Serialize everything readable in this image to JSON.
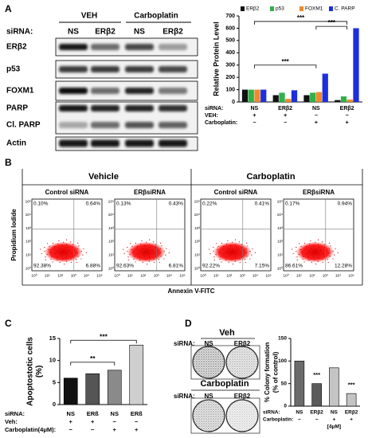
{
  "panels": [
    "A",
    "B",
    "C",
    "D"
  ],
  "blot": {
    "groups": [
      "VEH",
      "Carboplatin"
    ],
    "sirna_label": "siRNA:",
    "lanes": [
      "NS",
      "ERβ2",
      "NS",
      "ERβ2"
    ],
    "proteins": [
      "ERβ2",
      "p53",
      "FOXM1",
      "PARP",
      "Cl. PARP",
      "Actin"
    ]
  },
  "flow": {
    "groups": [
      "Vehicle",
      "Carboplatin"
    ],
    "y_label": "Propidium Iodide",
    "x_label": "Annexin V-FITC",
    "ticks": [
      "10⁰",
      "10¹",
      "10²",
      "10³",
      "10⁴",
      "10⁵"
    ],
    "plots": [
      {
        "title": "Control siRNA",
        "quadrants": [
          "0.10%",
          "0.64%",
          "92.38%",
          "6.88%"
        ]
      },
      {
        "title": "ERβsiRNA",
        "quadrants": [
          "0.13%",
          "0.43%",
          "92.63%",
          "6.81%"
        ]
      },
      {
        "title": "Control siRNA",
        "quadrants": [
          "0.22%",
          "0.41%",
          "92.22%",
          "7.15%"
        ]
      },
      {
        "title": "ERβsiRNA",
        "quadrants": [
          "0.17%",
          "0.94%",
          "86.61%",
          "12.28%"
        ]
      }
    ]
  },
  "colony": {
    "groups": [
      "Veh",
      "Carboplatin"
    ],
    "sirna_label": "siRNA:",
    "lanes": [
      "NS",
      "ERβ2"
    ]
  },
  "chart_data": [
    {
      "type": "bar",
      "ylabel": [
        "Relative Protein Level"
      ],
      "series": [
        {
          "name": "ERβ2",
          "color": "#111111",
          "values": [
            100,
            55,
            55,
            15
          ]
        },
        {
          "name": "p53",
          "color": "#2fb24a",
          "values": [
            100,
            75,
            75,
            45
          ]
        },
        {
          "name": "FOXM1",
          "color": "#f08a2c",
          "values": [
            100,
            25,
            80,
            20
          ]
        },
        {
          "name": "C. PARP",
          "color": "#1c2fe0",
          "values": [
            100,
            95,
            230,
            600
          ]
        }
      ],
      "ylim": [
        0,
        700
      ],
      "yticks": [
        0,
        100,
        200,
        300,
        400,
        500,
        600,
        700
      ],
      "annotations": [
        "***",
        "***",
        "***"
      ],
      "conditions": [
        {
          "label": "siRNA:",
          "values": [
            "NS",
            "ERβ2",
            "NS",
            "ERβ2"
          ]
        },
        {
          "label": "VEH:",
          "values": [
            "+",
            "+",
            "−",
            "−"
          ]
        },
        {
          "label": "Carboplatin:",
          "values": [
            "−",
            "−",
            "+",
            "+"
          ]
        }
      ]
    },
    {
      "type": "bar",
      "ylabel": [
        "Apoptostotic cells",
        "(%)"
      ],
      "values": [
        6,
        7,
        7.8,
        13.5
      ],
      "colors": [
        "#111111",
        "#555555",
        "#8a8a8a",
        "#cfcfcf"
      ],
      "ylim": [
        0,
        15
      ],
      "yticks": [
        0,
        5,
        10,
        15
      ],
      "annotations": [
        "***",
        "**"
      ],
      "conditions": [
        {
          "label": "siRNA:",
          "values": [
            "NS",
            "ERß",
            "NS",
            "ERß"
          ]
        },
        {
          "label": "Veh:",
          "values": [
            "+",
            "+",
            "−",
            "−"
          ]
        },
        {
          "label": "Carboplatin(4μM):",
          "values": [
            "−",
            "−",
            "+",
            "+"
          ]
        }
      ]
    },
    {
      "type": "bar",
      "ylabel": [
        "% Colony formation",
        "(% of control)"
      ],
      "values": [
        100,
        50,
        85,
        28
      ],
      "colors": [
        "#6b6b6b",
        "#5a5a5a",
        "#c4c4c4",
        "#c4c4c4"
      ],
      "ylim": [
        0,
        150
      ],
      "yticks": [
        0,
        50,
        100,
        150
      ],
      "annotations": [
        "***",
        "***"
      ],
      "conditions": [
        {
          "label": "siRNA:",
          "values": [
            "NS",
            "ERβ2",
            "NS",
            "ERβ2"
          ]
        },
        {
          "label": "Carboplatin:",
          "values": [
            "−",
            "−",
            "+",
            "+"
          ]
        },
        {
          "label": "",
          "values": [
            "",
            "",
            "[4μM]",
            ""
          ]
        }
      ]
    }
  ]
}
